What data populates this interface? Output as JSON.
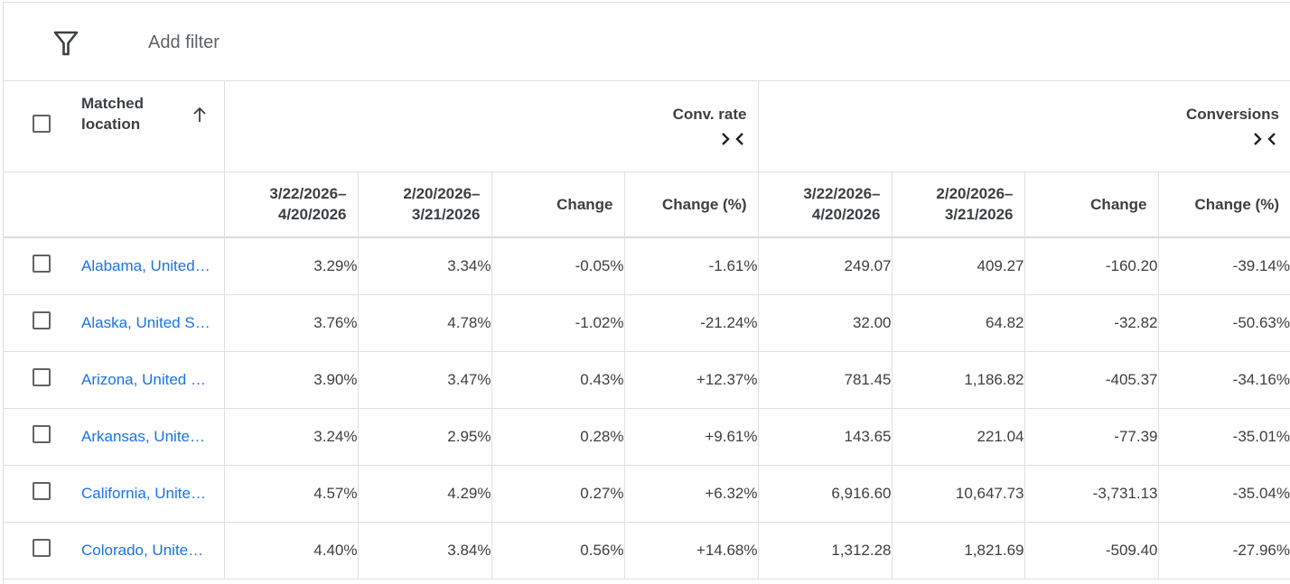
{
  "toolbar": {
    "filter_icon": "filter-funnel-icon",
    "add_filter_label": "Add filter"
  },
  "table": {
    "location_header_line1": "Matched",
    "location_header_line2": "location",
    "sort_icon": "arrow-up-icon",
    "groups": [
      {
        "title": "Conv. rate",
        "icon": "collapse-columns-icon"
      },
      {
        "title": "Conversions",
        "icon": "collapse-columns-icon"
      }
    ],
    "subheaders": [
      {
        "l1": "3/22/2026–",
        "l2": "4/20/2026"
      },
      {
        "l1": "2/20/2026–",
        "l2": "3/21/2026"
      },
      {
        "l1": "Change",
        "l2": ""
      },
      {
        "l1": "Change (%)",
        "l2": ""
      },
      {
        "l1": "3/22/2026–",
        "l2": "4/20/2026"
      },
      {
        "l1": "2/20/2026–",
        "l2": "3/21/2026"
      },
      {
        "l1": "Change",
        "l2": ""
      },
      {
        "l1": "Change (%)",
        "l2": ""
      }
    ],
    "rows": [
      {
        "location": "Alabama, United States",
        "cells": [
          "3.29%",
          "3.34%",
          "-0.05%",
          "-1.61%",
          "249.07",
          "409.27",
          "-160.20",
          "-39.14%"
        ]
      },
      {
        "location": "Alaska, United States",
        "cells": [
          "3.76%",
          "4.78%",
          "-1.02%",
          "-21.24%",
          "32.00",
          "64.82",
          "-32.82",
          "-50.63%"
        ]
      },
      {
        "location": "Arizona, United States",
        "cells": [
          "3.90%",
          "3.47%",
          "0.43%",
          "+12.37%",
          "781.45",
          "1,186.82",
          "-405.37",
          "-34.16%"
        ]
      },
      {
        "location": "Arkansas, United States",
        "cells": [
          "3.24%",
          "2.95%",
          "0.28%",
          "+9.61%",
          "143.65",
          "221.04",
          "-77.39",
          "-35.01%"
        ]
      },
      {
        "location": "California, United States",
        "cells": [
          "4.57%",
          "4.29%",
          "0.27%",
          "+6.32%",
          "6,916.60",
          "10,647.73",
          "-3,731.13",
          "-35.04%"
        ]
      },
      {
        "location": "Colorado, United States",
        "cells": [
          "4.40%",
          "3.84%",
          "0.56%",
          "+14.68%",
          "1,312.28",
          "1,821.69",
          "-509.40",
          "-27.96%"
        ]
      }
    ]
  }
}
